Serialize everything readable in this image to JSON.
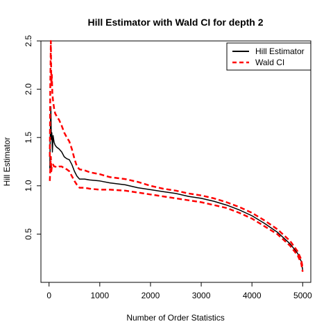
{
  "chart_data": {
    "type": "line",
    "title": "Hill Estimator with Wald CI for depth 2",
    "xlabel": "Number of Order Statistics",
    "ylabel": "Hill Estimator",
    "xlim": [
      -160,
      5160
    ],
    "ylim": [
      0.0,
      2.5
    ],
    "x_ticks": [
      0,
      1000,
      2000,
      3000,
      4000,
      5000
    ],
    "x_tick_labels": [
      "0",
      "1000",
      "2000",
      "3000",
      "4000",
      "5000"
    ],
    "y_ticks": [
      0.5,
      1.0,
      1.5,
      2.0,
      2.5
    ],
    "y_tick_labels": [
      "0.5",
      "1.0",
      "1.5",
      "2.0",
      "2.5"
    ],
    "grid": false,
    "legend": {
      "position": "top-right",
      "entries": [
        {
          "label": "Hill Estimator",
          "color": "#000000",
          "style": "solid"
        },
        {
          "label": "Wald CI",
          "color": "#ff0000",
          "style": "dashed"
        }
      ]
    },
    "series": [
      {
        "name": "Hill Estimator",
        "color": "#000000",
        "style": "solid",
        "x": [
          15,
          25,
          35,
          45,
          55,
          65,
          80,
          100,
          120,
          150,
          200,
          250,
          300,
          350,
          400,
          450,
          500,
          550,
          600,
          700,
          800,
          1000,
          1200,
          1500,
          1750,
          2000,
          2250,
          2500,
          2750,
          3000,
          3250,
          3500,
          3750,
          4000,
          4250,
          4500,
          4750,
          4900,
          4970,
          5000
        ],
        "y": [
          1.18,
          1.55,
          1.82,
          1.48,
          1.55,
          1.35,
          1.52,
          1.45,
          1.42,
          1.4,
          1.38,
          1.35,
          1.3,
          1.28,
          1.27,
          1.22,
          1.15,
          1.1,
          1.07,
          1.07,
          1.06,
          1.05,
          1.03,
          1.01,
          0.98,
          0.96,
          0.94,
          0.92,
          0.89,
          0.87,
          0.84,
          0.8,
          0.75,
          0.69,
          0.61,
          0.52,
          0.4,
          0.3,
          0.22,
          0.13
        ]
      },
      {
        "name": "Wald CI",
        "color": "#ff0000",
        "style": "dashed",
        "x": [
          15,
          25,
          35,
          45,
          55,
          65,
          80,
          100,
          120,
          150,
          200,
          250,
          300,
          350,
          400,
          450,
          500,
          550,
          600,
          700,
          800,
          1000,
          1200,
          1500,
          1750,
          2000,
          2250,
          2500,
          2750,
          3000,
          3250,
          3500,
          3750,
          4000,
          4250,
          4500,
          4750,
          4900,
          4970,
          5000
        ],
        "y": [
          1.3,
          2.05,
          2.5,
          2.05,
          2.15,
          1.95,
          1.88,
          1.8,
          1.75,
          1.72,
          1.68,
          1.62,
          1.55,
          1.5,
          1.46,
          1.38,
          1.28,
          1.2,
          1.17,
          1.16,
          1.14,
          1.12,
          1.09,
          1.07,
          1.04,
          1.0,
          0.97,
          0.95,
          0.92,
          0.9,
          0.87,
          0.83,
          0.78,
          0.72,
          0.64,
          0.55,
          0.43,
          0.32,
          0.24,
          0.15
        ]
      },
      {
        "name": "",
        "color": "#ff0000",
        "style": "dashed",
        "x": [
          15,
          25,
          35,
          45,
          55,
          65,
          80,
          100,
          120,
          150,
          200,
          250,
          300,
          350,
          400,
          450,
          500,
          550,
          600,
          700,
          800,
          1000,
          1200,
          1500,
          1750,
          2000,
          2250,
          2500,
          2750,
          3000,
          3250,
          3500,
          3750,
          4000,
          4250,
          4500,
          4750,
          4900,
          4970,
          5000
        ],
        "y": [
          1.05,
          1.18,
          1.3,
          1.15,
          1.2,
          1.2,
          1.22,
          1.2,
          1.2,
          1.19,
          1.2,
          1.2,
          1.18,
          1.17,
          1.15,
          1.1,
          1.05,
          1.01,
          0.98,
          0.98,
          0.97,
          0.96,
          0.96,
          0.95,
          0.93,
          0.91,
          0.89,
          0.87,
          0.85,
          0.83,
          0.8,
          0.77,
          0.72,
          0.66,
          0.58,
          0.5,
          0.38,
          0.28,
          0.2,
          0.11
        ]
      }
    ]
  }
}
